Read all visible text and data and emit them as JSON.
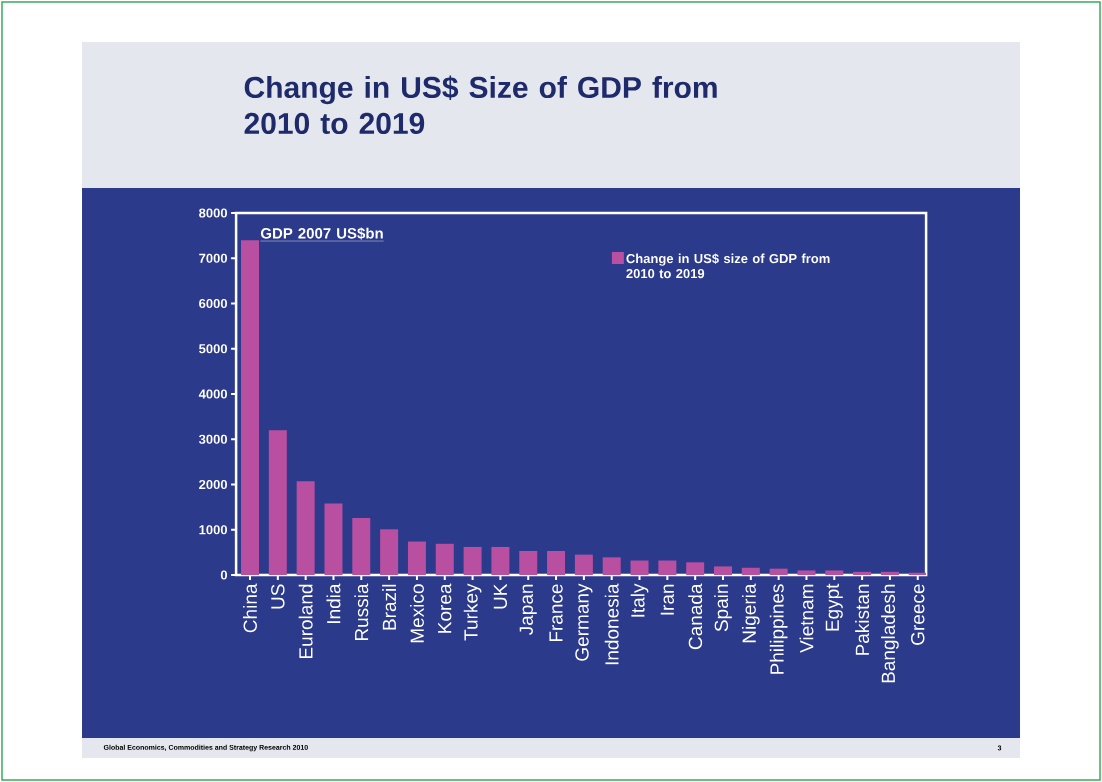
{
  "chart_data": {
    "type": "bar",
    "title": "Change in US$ Size of GDP from 2010 to 2019",
    "categories": [
      "China",
      "US",
      "Euroland",
      "India",
      "Russia",
      "Brazil",
      "Mexico",
      "Korea",
      "Turkey",
      "UK",
      "Japan",
      "France",
      "Germany",
      "Indonesia",
      "Italy",
      "Iran",
      "Canada",
      "Spain",
      "Nigeria",
      "Philippines",
      "Vietnam",
      "Egypt",
      "Pakistan",
      "Bangladesh",
      "Greece"
    ],
    "series": [
      {
        "name": "Change in US$ size of GDP from 2010 to 2019",
        "color": "#b84fa0",
        "values": [
          7400,
          3200,
          2070,
          1580,
          1260,
          1010,
          740,
          690,
          620,
          620,
          530,
          530,
          450,
          390,
          320,
          320,
          280,
          190,
          160,
          140,
          100,
          100,
          70,
          70,
          50
        ]
      }
    ],
    "ylim": [
      0,
      8000
    ],
    "yticks": [
      0,
      1000,
      2000,
      3000,
      4000,
      5000,
      6000,
      7000,
      8000
    ],
    "legend": "top right",
    "annotations": [
      "GDP 2007 US$bn",
      "Global Economics, Commodities and Strategy Research 2010",
      "3"
    ]
  }
}
